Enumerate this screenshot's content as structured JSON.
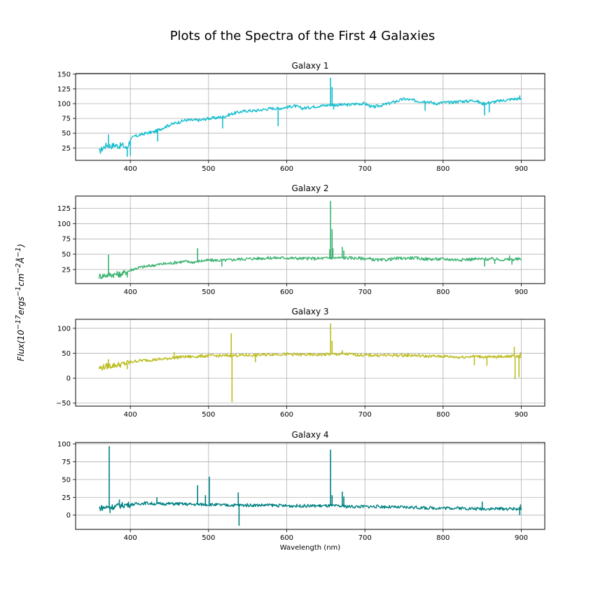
{
  "figure": {
    "title": "Plots of the Spectra of the First 4 Galaxies",
    "xlabel": "Wavelength (nm)",
    "ylabel": "Flux(10<sup>−17</sup>ergs<sup>−1</sup>cm<sup>−2</sup>Å<sup>−1</sup>)"
  },
  "chart_data": [
    {
      "type": "line",
      "title": "Galaxy 1",
      "color": "#17becf",
      "xlim": [
        330,
        930
      ],
      "ylim": [
        4,
        151
      ],
      "xticks": [
        400,
        500,
        600,
        700,
        800,
        900
      ],
      "yticks": [
        25,
        50,
        75,
        100,
        125,
        150
      ],
      "grid": true,
      "series": [
        {
          "x": [
            360,
            365,
            370,
            375,
            380,
            385,
            390,
            395,
            400,
            405,
            410,
            420,
            430,
            440,
            450,
            460,
            470,
            480,
            490,
            500,
            510,
            520,
            530,
            540,
            550,
            560,
            570,
            580,
            590,
            600,
            610,
            620,
            630,
            640,
            650,
            655,
            660,
            670,
            680,
            690,
            700,
            710,
            720,
            730,
            740,
            750,
            760,
            770,
            780,
            790,
            800,
            810,
            820,
            830,
            840,
            850,
            860,
            870,
            880,
            890,
            900
          ],
          "y": [
            18,
            25,
            30,
            28,
            30,
            28,
            30,
            24,
            38,
            45,
            46,
            50,
            52,
            58,
            64,
            68,
            72,
            72,
            72,
            75,
            76,
            78,
            83,
            86,
            88,
            88,
            90,
            92,
            92,
            94,
            96,
            92,
            94,
            96,
            97,
            98,
            98,
            98,
            98,
            100,
            100,
            94,
            97,
            100,
            104,
            108,
            106,
            104,
            104,
            100,
            102,
            102,
            104,
            104,
            106,
            100,
            102,
            104,
            106,
            108,
            108
          ]
        }
      ],
      "spikes": [
        {
          "x": 372,
          "y": 48
        },
        {
          "x": 396,
          "y": 10
        },
        {
          "x": 400,
          "y": 12
        },
        {
          "x": 435,
          "y": 36
        },
        {
          "x": 518,
          "y": 58
        },
        {
          "x": 589,
          "y": 62
        },
        {
          "x": 656,
          "y": 144
        },
        {
          "x": 658,
          "y": 128
        },
        {
          "x": 660,
          "y": 90
        },
        {
          "x": 712,
          "y": 92
        },
        {
          "x": 777,
          "y": 88
        },
        {
          "x": 853,
          "y": 80
        },
        {
          "x": 859,
          "y": 85
        },
        {
          "x": 898,
          "y": 114
        }
      ]
    },
    {
      "type": "line",
      "title": "Galaxy 2",
      "color": "#3cb371",
      "xlim": [
        330,
        930
      ],
      "ylim": [
        2,
        145
      ],
      "xticks": [
        400,
        500,
        600,
        700,
        800,
        900
      ],
      "yticks": [
        25,
        50,
        75,
        100,
        125
      ],
      "grid": true,
      "series": [
        {
          "x": [
            360,
            370,
            380,
            390,
            400,
            410,
            420,
            430,
            440,
            450,
            460,
            470,
            480,
            490,
            500,
            520,
            540,
            560,
            580,
            600,
            620,
            640,
            660,
            680,
            700,
            720,
            740,
            760,
            780,
            800,
            820,
            840,
            860,
            880,
            900
          ],
          "y": [
            14,
            16,
            17,
            18,
            24,
            28,
            30,
            32,
            34,
            35,
            37,
            38,
            37,
            39,
            40,
            40,
            42,
            43,
            44,
            44,
            43,
            43,
            44,
            44,
            43,
            40,
            43,
            44,
            42,
            42,
            41,
            42,
            42,
            41,
            42
          ]
        }
      ],
      "spikes": [
        {
          "x": 372,
          "y": 49
        },
        {
          "x": 386,
          "y": 12
        },
        {
          "x": 396,
          "y": 12
        },
        {
          "x": 486,
          "y": 60
        },
        {
          "x": 517,
          "y": 30
        },
        {
          "x": 655,
          "y": 58
        },
        {
          "x": 656,
          "y": 137
        },
        {
          "x": 658,
          "y": 91
        },
        {
          "x": 659,
          "y": 60
        },
        {
          "x": 671,
          "y": 62
        },
        {
          "x": 673,
          "y": 56
        },
        {
          "x": 853,
          "y": 30
        },
        {
          "x": 866,
          "y": 34
        },
        {
          "x": 885,
          "y": 48
        },
        {
          "x": 888,
          "y": 33
        }
      ]
    },
    {
      "type": "line",
      "title": "Galaxy 3",
      "color": "#bcbd22",
      "xlim": [
        330,
        930
      ],
      "ylim": [
        -56,
        118
      ],
      "xticks": [
        400,
        500,
        600,
        700,
        800,
        900
      ],
      "yticks": [
        -50,
        0,
        50,
        100
      ],
      "grid": true,
      "series": [
        {
          "x": [
            360,
            370,
            380,
            390,
            400,
            410,
            420,
            430,
            440,
            450,
            460,
            470,
            480,
            490,
            500,
            520,
            540,
            560,
            580,
            600,
            620,
            640,
            660,
            680,
            700,
            720,
            740,
            760,
            780,
            800,
            820,
            840,
            860,
            880,
            900
          ],
          "y": [
            20,
            24,
            26,
            28,
            32,
            35,
            36,
            37,
            38,
            40,
            42,
            43,
            43,
            44,
            45,
            45,
            46,
            46,
            48,
            48,
            47,
            47,
            48,
            48,
            46,
            46,
            46,
            46,
            44,
            44,
            42,
            44,
            42,
            44,
            44
          ]
        }
      ],
      "spikes": [
        {
          "x": 372,
          "y": 38
        },
        {
          "x": 396,
          "y": 18
        },
        {
          "x": 456,
          "y": 52
        },
        {
          "x": 529,
          "y": 90
        },
        {
          "x": 530,
          "y": -48
        },
        {
          "x": 560,
          "y": 32
        },
        {
          "x": 656,
          "y": 110
        },
        {
          "x": 658,
          "y": 75
        },
        {
          "x": 671,
          "y": 56
        },
        {
          "x": 840,
          "y": 26
        },
        {
          "x": 856,
          "y": 25
        },
        {
          "x": 891,
          "y": 63
        },
        {
          "x": 892,
          "y": -2
        },
        {
          "x": 897,
          "y": 2
        },
        {
          "x": 899,
          "y": 52
        }
      ]
    },
    {
      "type": "line",
      "title": "Galaxy 4",
      "color": "#008080",
      "xlim": [
        330,
        930
      ],
      "ylim": [
        -20,
        102
      ],
      "xticks": [
        400,
        500,
        600,
        700,
        800,
        900
      ],
      "yticks": [
        0,
        25,
        50,
        75,
        100
      ],
      "grid": true,
      "series": [
        {
          "x": [
            360,
            370,
            380,
            390,
            400,
            410,
            420,
            430,
            440,
            450,
            460,
            480,
            500,
            520,
            540,
            560,
            580,
            600,
            620,
            640,
            660,
            680,
            700,
            720,
            740,
            760,
            780,
            800,
            820,
            840,
            860,
            880,
            900
          ],
          "y": [
            10,
            11,
            12,
            14,
            15,
            16,
            17,
            16,
            16,
            16,
            16,
            15,
            15,
            14,
            14,
            14,
            14,
            13,
            13,
            13,
            13,
            12,
            12,
            12,
            11,
            11,
            10,
            10,
            10,
            9,
            9,
            9,
            9
          ]
        }
      ],
      "spikes": [
        {
          "x": 373,
          "y": 97
        },
        {
          "x": 374,
          "y": 3
        },
        {
          "x": 386,
          "y": 22
        },
        {
          "x": 434,
          "y": 25
        },
        {
          "x": 486,
          "y": 42
        },
        {
          "x": 496,
          "y": 28
        },
        {
          "x": 501,
          "y": 54
        },
        {
          "x": 538,
          "y": 32
        },
        {
          "x": 539,
          "y": -15
        },
        {
          "x": 656,
          "y": 92
        },
        {
          "x": 658,
          "y": 28
        },
        {
          "x": 671,
          "y": 33
        },
        {
          "x": 673,
          "y": 26
        },
        {
          "x": 850,
          "y": 19
        },
        {
          "x": 898,
          "y": 0
        },
        {
          "x": 899,
          "y": 15
        }
      ]
    }
  ]
}
